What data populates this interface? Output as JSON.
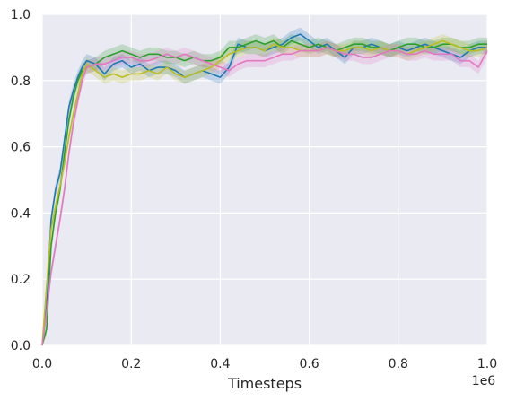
{
  "chart_data": {
    "type": "line",
    "title": "",
    "xlabel": "Timesteps",
    "ylabel": "",
    "x_offset_label": "1e6",
    "xlim": [
      0.0,
      1.0
    ],
    "ylim": [
      0.0,
      1.0
    ],
    "xticks": [
      "0.0",
      "0.2",
      "0.4",
      "0.6",
      "0.8",
      "1.0"
    ],
    "yticks": [
      "0.0",
      "0.2",
      "0.4",
      "0.6",
      "0.8",
      "1.0"
    ],
    "grid": true,
    "legend": "none",
    "colors": {
      "background": "#eaeaf2",
      "grid": "#ffffff",
      "blue": "#1f77b4",
      "green": "#2ca02c",
      "olive": "#bcbd22",
      "pink": "#e377c2"
    },
    "series": [
      {
        "color": "blue",
        "x": [
          0.0,
          0.01,
          0.02,
          0.03,
          0.04,
          0.05,
          0.06,
          0.07,
          0.08,
          0.09,
          0.1,
          0.12,
          0.14,
          0.16,
          0.18,
          0.2,
          0.22,
          0.24,
          0.26,
          0.28,
          0.3,
          0.32,
          0.34,
          0.36,
          0.38,
          0.4,
          0.42,
          0.44,
          0.46,
          0.48,
          0.5,
          0.52,
          0.54,
          0.56,
          0.58,
          0.6,
          0.62,
          0.64,
          0.66,
          0.68,
          0.7,
          0.72,
          0.74,
          0.76,
          0.78,
          0.8,
          0.82,
          0.84,
          0.86,
          0.88,
          0.9,
          0.92,
          0.94,
          0.96,
          0.98,
          1.0
        ],
        "y": [
          0.0,
          0.12,
          0.38,
          0.47,
          0.52,
          0.62,
          0.72,
          0.77,
          0.81,
          0.84,
          0.86,
          0.85,
          0.82,
          0.85,
          0.86,
          0.84,
          0.85,
          0.83,
          0.84,
          0.84,
          0.83,
          0.81,
          0.82,
          0.83,
          0.82,
          0.81,
          0.84,
          0.91,
          0.9,
          0.9,
          0.89,
          0.9,
          0.91,
          0.93,
          0.94,
          0.92,
          0.9,
          0.91,
          0.89,
          0.87,
          0.9,
          0.9,
          0.91,
          0.9,
          0.89,
          0.9,
          0.89,
          0.9,
          0.91,
          0.9,
          0.89,
          0.88,
          0.87,
          0.89,
          0.9,
          0.9
        ],
        "band": 0.02
      },
      {
        "color": "green",
        "x": [
          0.0,
          0.01,
          0.02,
          0.03,
          0.04,
          0.05,
          0.06,
          0.07,
          0.08,
          0.09,
          0.1,
          0.12,
          0.14,
          0.16,
          0.18,
          0.2,
          0.22,
          0.24,
          0.26,
          0.28,
          0.3,
          0.32,
          0.34,
          0.36,
          0.38,
          0.4,
          0.42,
          0.44,
          0.46,
          0.48,
          0.5,
          0.52,
          0.54,
          0.56,
          0.58,
          0.6,
          0.62,
          0.64,
          0.66,
          0.68,
          0.7,
          0.72,
          0.74,
          0.76,
          0.78,
          0.8,
          0.82,
          0.84,
          0.86,
          0.88,
          0.9,
          0.92,
          0.94,
          0.96,
          0.98,
          1.0
        ],
        "y": [
          0.0,
          0.05,
          0.3,
          0.4,
          0.47,
          0.58,
          0.68,
          0.75,
          0.8,
          0.83,
          0.84,
          0.85,
          0.87,
          0.88,
          0.89,
          0.88,
          0.87,
          0.88,
          0.88,
          0.87,
          0.87,
          0.86,
          0.87,
          0.86,
          0.86,
          0.87,
          0.9,
          0.9,
          0.91,
          0.92,
          0.91,
          0.92,
          0.9,
          0.92,
          0.91,
          0.9,
          0.91,
          0.9,
          0.89,
          0.9,
          0.91,
          0.91,
          0.9,
          0.9,
          0.89,
          0.9,
          0.91,
          0.91,
          0.9,
          0.9,
          0.91,
          0.91,
          0.9,
          0.9,
          0.91,
          0.91
        ],
        "band": 0.02
      },
      {
        "color": "olive",
        "x": [
          0.0,
          0.01,
          0.02,
          0.03,
          0.04,
          0.05,
          0.06,
          0.07,
          0.08,
          0.09,
          0.1,
          0.12,
          0.14,
          0.16,
          0.18,
          0.2,
          0.22,
          0.24,
          0.26,
          0.28,
          0.3,
          0.32,
          0.34,
          0.36,
          0.38,
          0.4,
          0.42,
          0.44,
          0.46,
          0.48,
          0.5,
          0.52,
          0.54,
          0.56,
          0.58,
          0.6,
          0.62,
          0.64,
          0.66,
          0.68,
          0.7,
          0.72,
          0.74,
          0.76,
          0.78,
          0.8,
          0.82,
          0.84,
          0.86,
          0.88,
          0.9,
          0.92,
          0.94,
          0.96,
          0.98,
          1.0
        ],
        "y": [
          0.0,
          0.18,
          0.35,
          0.42,
          0.48,
          0.55,
          0.63,
          0.7,
          0.76,
          0.82,
          0.85,
          0.83,
          0.81,
          0.82,
          0.81,
          0.82,
          0.82,
          0.83,
          0.82,
          0.84,
          0.82,
          0.81,
          0.82,
          0.83,
          0.84,
          0.86,
          0.88,
          0.89,
          0.9,
          0.9,
          0.89,
          0.91,
          0.9,
          0.9,
          0.89,
          0.89,
          0.89,
          0.9,
          0.89,
          0.89,
          0.9,
          0.9,
          0.89,
          0.9,
          0.89,
          0.89,
          0.88,
          0.89,
          0.9,
          0.91,
          0.92,
          0.91,
          0.9,
          0.89,
          0.89,
          0.9
        ],
        "band": 0.02
      },
      {
        "color": "pink",
        "x": [
          0.0,
          0.01,
          0.02,
          0.03,
          0.04,
          0.05,
          0.06,
          0.07,
          0.08,
          0.09,
          0.1,
          0.12,
          0.14,
          0.16,
          0.18,
          0.2,
          0.22,
          0.24,
          0.26,
          0.28,
          0.3,
          0.32,
          0.34,
          0.36,
          0.38,
          0.4,
          0.42,
          0.44,
          0.46,
          0.48,
          0.5,
          0.52,
          0.54,
          0.56,
          0.58,
          0.6,
          0.62,
          0.64,
          0.66,
          0.68,
          0.7,
          0.72,
          0.74,
          0.76,
          0.78,
          0.8,
          0.82,
          0.84,
          0.86,
          0.88,
          0.9,
          0.92,
          0.94,
          0.96,
          0.98,
          1.0
        ],
        "y": [
          0.0,
          0.1,
          0.22,
          0.3,
          0.38,
          0.47,
          0.58,
          0.67,
          0.74,
          0.8,
          0.84,
          0.85,
          0.85,
          0.86,
          0.87,
          0.87,
          0.86,
          0.86,
          0.87,
          0.88,
          0.87,
          0.88,
          0.87,
          0.86,
          0.85,
          0.84,
          0.83,
          0.85,
          0.86,
          0.86,
          0.86,
          0.87,
          0.88,
          0.88,
          0.89,
          0.89,
          0.89,
          0.9,
          0.89,
          0.88,
          0.88,
          0.87,
          0.87,
          0.88,
          0.89,
          0.89,
          0.88,
          0.88,
          0.89,
          0.88,
          0.88,
          0.88,
          0.86,
          0.86,
          0.84,
          0.89
        ],
        "band": 0.02
      }
    ]
  }
}
